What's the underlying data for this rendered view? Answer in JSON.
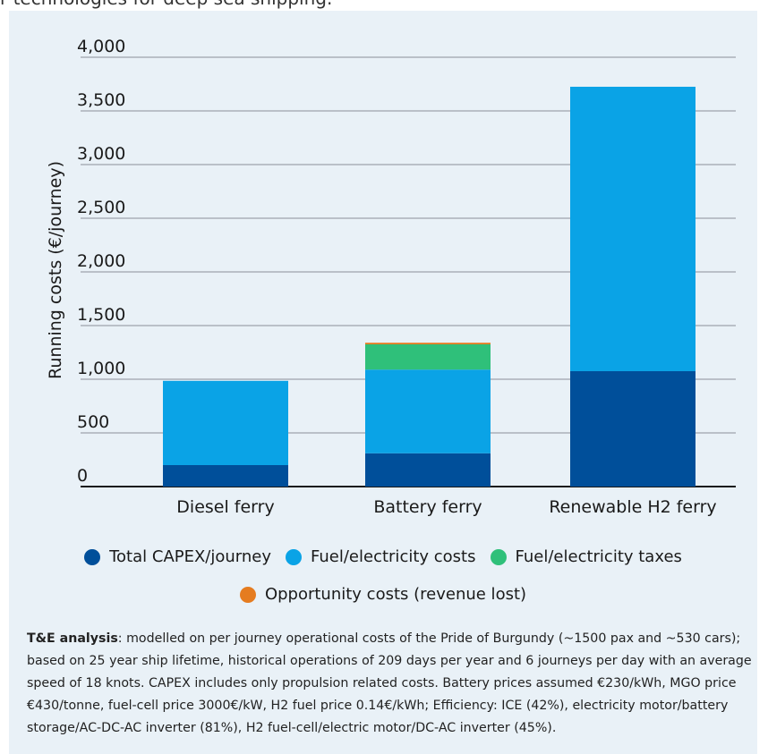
{
  "top_caption": "r technologies for deep sea shipping.",
  "chart_data": {
    "type": "bar",
    "stacked": true,
    "categories": [
      "Diesel ferry",
      "Battery ferry",
      "Renewable H2 ferry"
    ],
    "series": [
      {
        "name": "Total CAPEX/journey",
        "color": "#004f9a",
        "values": [
          200,
          310,
          1075
        ]
      },
      {
        "name": "Fuel/electricity costs",
        "color": "#0aa3e6",
        "values": [
          785,
          780,
          2650
        ]
      },
      {
        "name": "Fuel/electricity taxes",
        "color": "#2fc07a",
        "values": [
          0,
          235,
          0
        ]
      },
      {
        "name": "Opportunity costs (revenue lost)",
        "color": "#e57c20",
        "values": [
          0,
          15,
          0
        ]
      }
    ],
    "ylabel": "Running costs (€/journey)",
    "xlabel": "",
    "ylim": [
      0,
      4000
    ],
    "yticks": [
      "0",
      "500",
      "1,000",
      "1,500",
      "2,000",
      "2,500",
      "3,000",
      "3,500",
      "4,000"
    ],
    "grid": true,
    "legend_position": "bottom"
  },
  "note": {
    "bold": "T&E analysis",
    "text": ": modelled on per journey operational costs of the Pride of Burgundy (~1500 pax and ~530 cars); based on 25 year ship lifetime, historical operations of 209 days per year and 6 journeys per day with an average speed of 18 knots. CAPEX includes only propulsion related costs. Battery prices assumed €230/kWh, MGO price €430/tonne, fuel-cell price 3000€/kW, H2 fuel price 0.14€/kWh; Efficiency: ICE (42%), electricity motor/battery storage/AC-DC-AC inverter (81%), H2 fuel-cell/electric motor/DC-AC inverter (45%)."
  }
}
